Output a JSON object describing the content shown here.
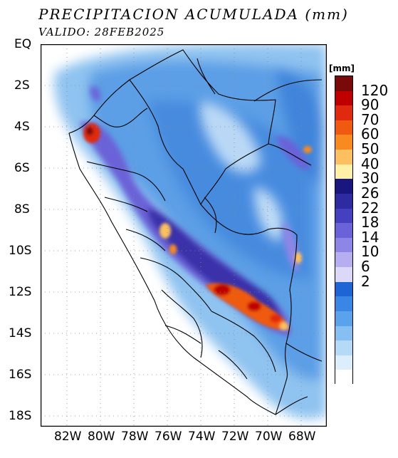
{
  "title": "PRECIPITACION ACUMULADA (mm)",
  "subtitle": "VALIDO: 28FEB2025",
  "colorbar": {
    "unit": "[mm]",
    "labels": [
      "120",
      "90",
      "70",
      "60",
      "50",
      "40",
      "30",
      "26",
      "22",
      "18",
      "14",
      "10",
      "6",
      "2"
    ],
    "colors": [
      "#7a0a0a",
      "#c00000",
      "#e02a10",
      "#f05a10",
      "#f88a20",
      "#fcc060",
      "#fff0a8",
      "#1a1680",
      "#2e2aa0",
      "#4540c0",
      "#6a62d8",
      "#8e86e6",
      "#b6aef0",
      "#dcd8f8",
      "#1d64d4",
      "#3a86e4",
      "#5aa2ec",
      "#86c0f2",
      "#b4daf8",
      "#dceefc",
      "#ffffff"
    ]
  },
  "axes": {
    "lat_labels": [
      "EQ",
      "2S",
      "4S",
      "6S",
      "8S",
      "10S",
      "12S",
      "14S",
      "16S",
      "18S"
    ],
    "lon_labels": [
      "82W",
      "80W",
      "78W",
      "76W",
      "74W",
      "72W",
      "70W",
      "68W"
    ]
  }
}
